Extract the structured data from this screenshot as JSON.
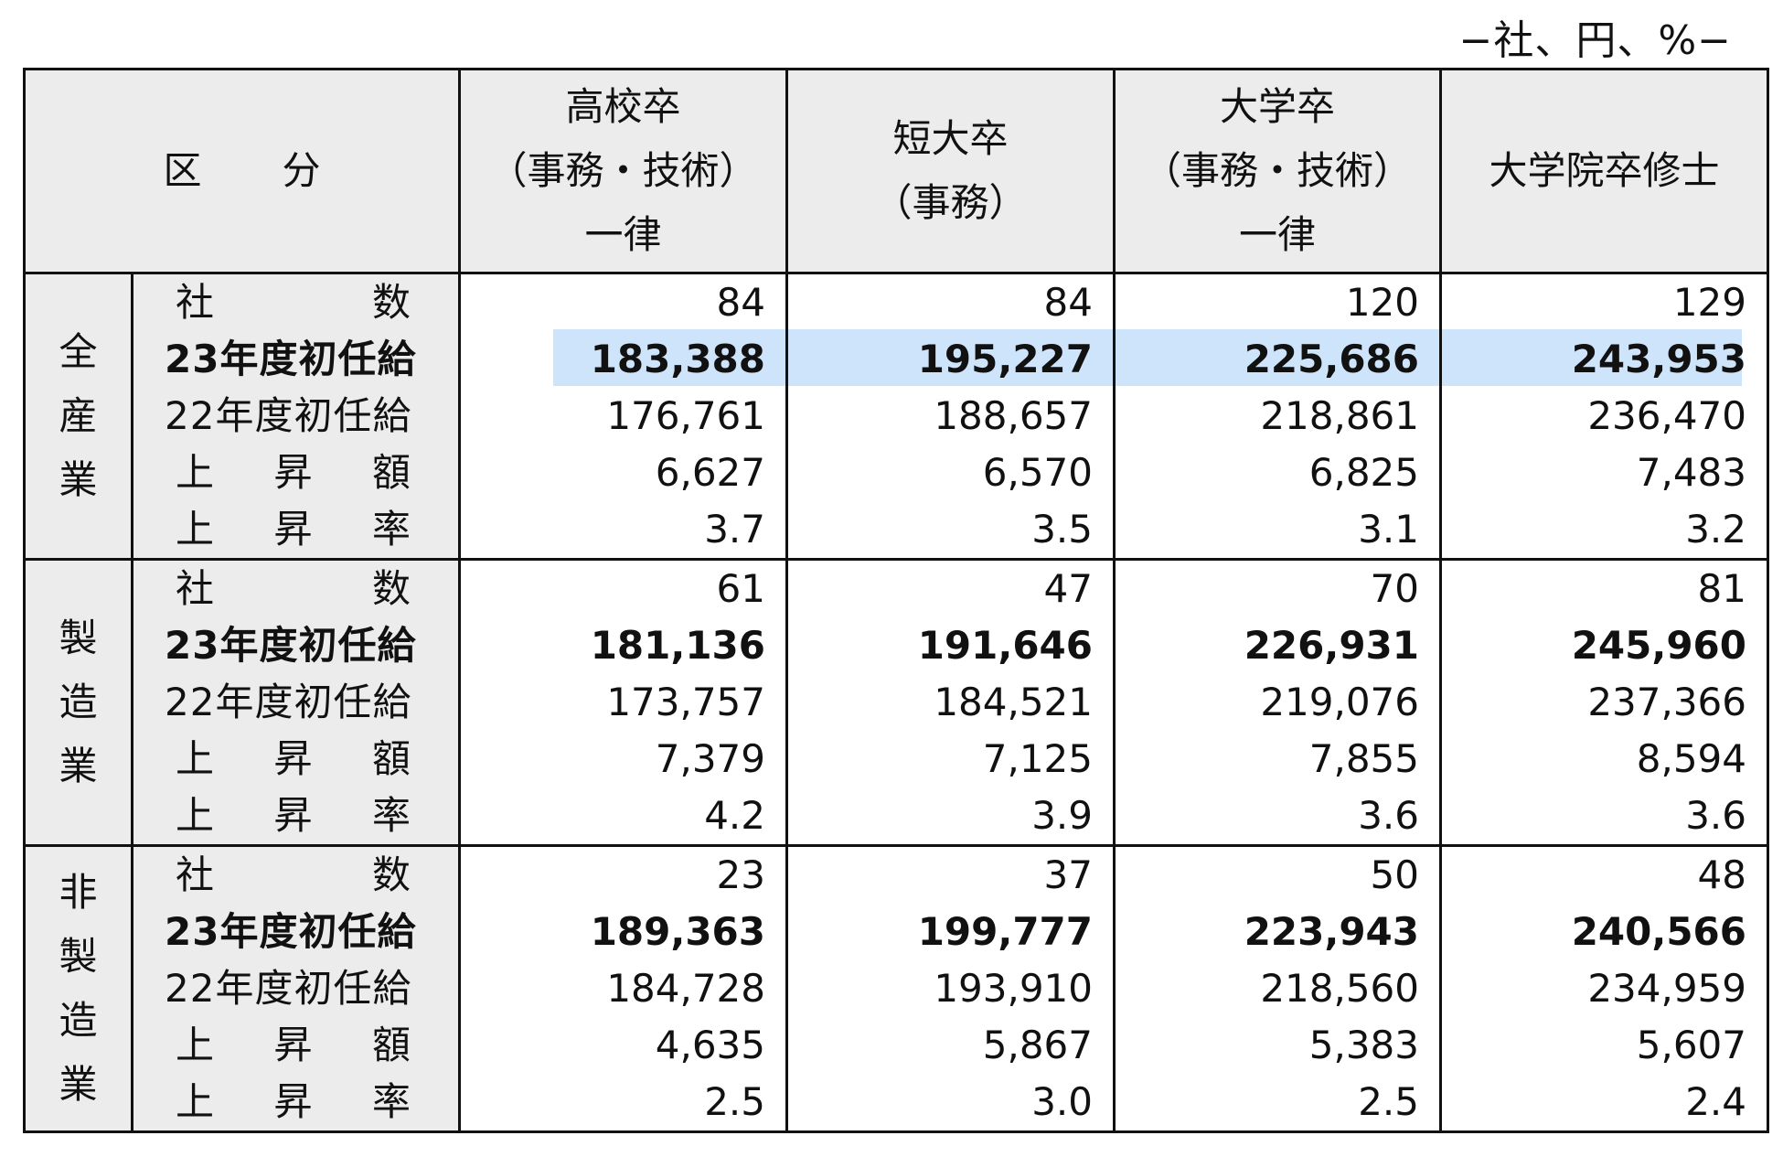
{
  "unit_note": "−社、円、%−",
  "header": {
    "kubun": [
      "区",
      "分"
    ],
    "columns": [
      [
        "高校卒",
        "（事務・技術）",
        "一律"
      ],
      [
        "短大卒",
        "（事務）"
      ],
      [
        "大学卒",
        "（事務・技術）",
        "一律"
      ],
      [
        "大学院卒修士"
      ]
    ]
  },
  "row_labels": {
    "companies": [
      "社",
      "数"
    ],
    "salary_23": "23年度初任給",
    "salary_22": "22年度初任給",
    "increase_amount": [
      "上",
      "昇",
      "額"
    ],
    "increase_rate": [
      "上",
      "昇",
      "率"
    ]
  },
  "groups": [
    {
      "name": [
        "全",
        "産",
        "業"
      ],
      "companies": [
        "84",
        "84",
        "120",
        "129"
      ],
      "salary_23": [
        "183,388",
        "195,227",
        "225,686",
        "243,953"
      ],
      "salary_22": [
        "176,761",
        "188,657",
        "218,861",
        "236,470"
      ],
      "increase_amount": [
        "6,627",
        "6,570",
        "6,825",
        "7,483"
      ],
      "increase_rate": [
        "3.7",
        "3.5",
        "3.1",
        "3.2"
      ]
    },
    {
      "name": [
        "製",
        "造",
        "業"
      ],
      "companies": [
        "61",
        "47",
        "70",
        "81"
      ],
      "salary_23": [
        "181,136",
        "191,646",
        "226,931",
        "245,960"
      ],
      "salary_22": [
        "173,757",
        "184,521",
        "219,076",
        "237,366"
      ],
      "increase_amount": [
        "7,379",
        "7,125",
        "7,855",
        "8,594"
      ],
      "increase_rate": [
        "4.2",
        "3.9",
        "3.6",
        "3.6"
      ]
    },
    {
      "name": [
        "非",
        "製",
        "造",
        "業"
      ],
      "companies": [
        "23",
        "37",
        "50",
        "48"
      ],
      "salary_23": [
        "189,363",
        "199,777",
        "223,943",
        "240,566"
      ],
      "salary_22": [
        "184,728",
        "193,910",
        "218,560",
        "234,959"
      ],
      "increase_amount": [
        "4,635",
        "5,867",
        "5,383",
        "5,607"
      ],
      "increase_rate": [
        "2.5",
        "3.0",
        "2.5",
        "2.4"
      ]
    }
  ],
  "highlight_color": "#cde4fa"
}
